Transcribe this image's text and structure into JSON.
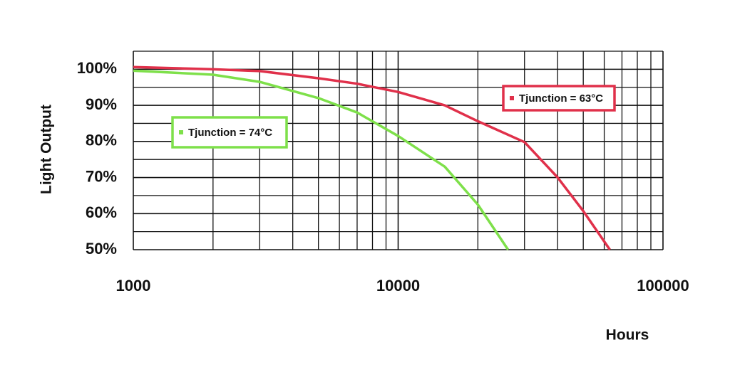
{
  "chart_data": {
    "type": "line",
    "x_label": "Hours",
    "y_label": "Light Output",
    "x_log": true,
    "grid": true,
    "xlim": [
      1000,
      100000
    ],
    "xticks": [
      1000,
      10000,
      100000
    ],
    "minor_xticks": [
      2000,
      3000,
      4000,
      5000,
      6000,
      7000,
      8000,
      9000,
      20000,
      30000,
      40000,
      50000,
      60000,
      70000,
      80000,
      90000
    ],
    "ylim": [
      50,
      105
    ],
    "yticks": [
      {
        "value": 50,
        "label": "50%"
      },
      {
        "value": 60,
        "label": "60%"
      },
      {
        "value": 70,
        "label": "70%"
      },
      {
        "value": 80,
        "label": "80%"
      },
      {
        "value": 90,
        "label": "90%"
      },
      {
        "value": 100,
        "label": "100%"
      }
    ],
    "minor_yticks": [
      55,
      65,
      75,
      85,
      95,
      105
    ],
    "series": [
      {
        "name": "Tjunction = 63°C",
        "color": "#e0304a",
        "x": [
          1000,
          2000,
          3000,
          5000,
          7000,
          10000,
          15000,
          20000,
          30000,
          40000,
          50000,
          63000
        ],
        "values": [
          100.6,
          100,
          99.5,
          97.5,
          96,
          93.7,
          90,
          85.6,
          79.8,
          70,
          60.7,
          50
        ]
      },
      {
        "name": "Tjunction = 74°C",
        "color": "#7ee04a",
        "x": [
          1000,
          2000,
          3000,
          5000,
          7000,
          10000,
          15000,
          20000,
          26000
        ],
        "values": [
          99.6,
          98.5,
          96.5,
          92,
          88,
          81.5,
          73,
          62.5,
          50
        ]
      }
    ]
  }
}
